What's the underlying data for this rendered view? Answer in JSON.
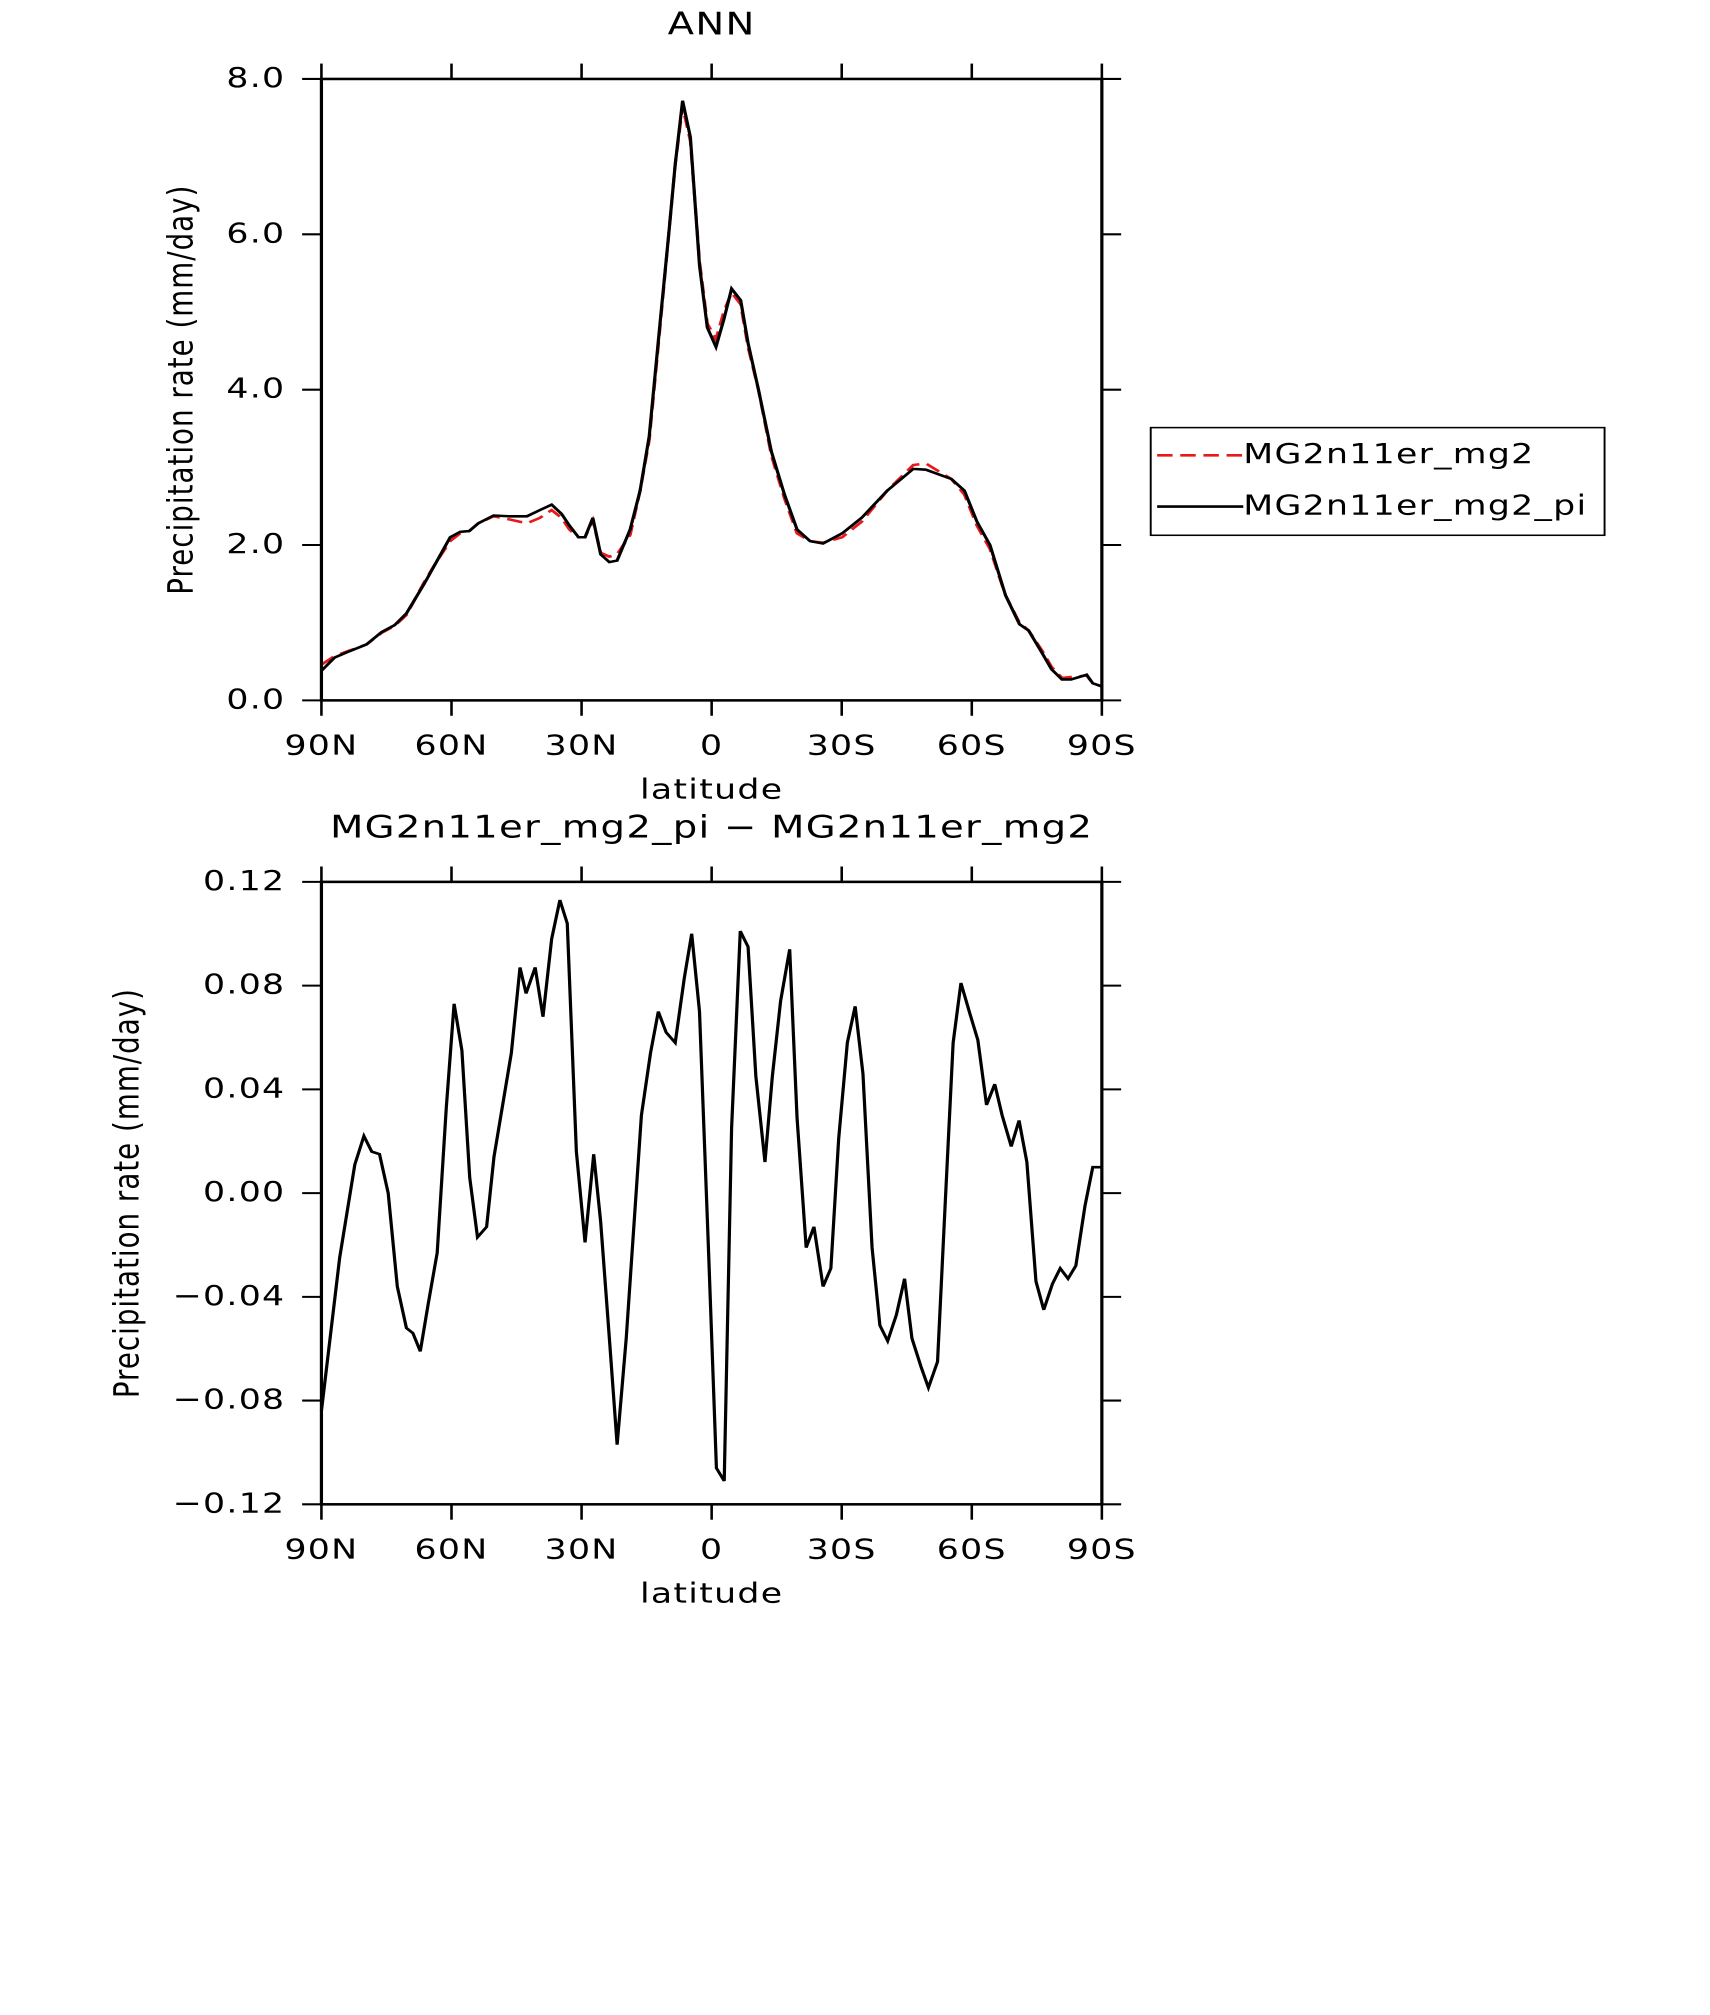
{
  "chart_data": [
    {
      "type": "line",
      "title": "ANN",
      "x_label": "latitude",
      "y_label": "Precipitation rate (mm/day)",
      "x": [
        90,
        87.0,
        84.1,
        79.6,
        76.1,
        73.1,
        70.4,
        66.3,
        63.3,
        60.3,
        58.0,
        55.9,
        53.8,
        50.3,
        46.7,
        42.6,
        39.6,
        36.9,
        34.6,
        32.8,
        30.7,
        29.2,
        27.4,
        25.6,
        23.6,
        21.8,
        18.8,
        16.5,
        14.4,
        12.0,
        9.9,
        8.4,
        6.7,
        4.9,
        2.8,
        1.0,
        -1.0,
        -2.8,
        -4.6,
        -6.7,
        -8.4,
        -10.8,
        -13.8,
        -16.8,
        -19.7,
        -22.7,
        -25.7,
        -30.1,
        -34.6,
        -40.5,
        -46.5,
        -49.4,
        -55.3,
        -58.3,
        -61.2,
        -64.2,
        -67.8,
        -71.0,
        -73.1,
        -76.1,
        -78.4,
        -80.8,
        -82.9,
        -86.5,
        -87.9,
        -90
      ],
      "series": [
        {
          "name": "MG2n11er_mg2",
          "color": "#e8191b",
          "dash": true,
          "values": [
            0.46,
            0.57,
            0.63,
            0.72,
            0.87,
            0.96,
            1.1,
            1.52,
            1.8,
            2.05,
            2.15,
            2.18,
            2.28,
            2.37,
            2.33,
            2.28,
            2.35,
            2.45,
            2.35,
            2.2,
            2.1,
            2.1,
            2.32,
            1.9,
            1.85,
            1.88,
            2.13,
            2.7,
            3.35,
            4.75,
            6.0,
            6.9,
            7.65,
            7.2,
            5.65,
            4.85,
            4.65,
            5.0,
            5.25,
            5.1,
            4.55,
            4.0,
            3.15,
            2.6,
            2.15,
            2.05,
            2.03,
            2.1,
            2.3,
            2.7,
            3.03,
            3.05,
            2.85,
            2.65,
            2.25,
            1.95,
            1.35,
            1.0,
            0.9,
            0.65,
            0.43,
            0.29,
            0.3,
            0.32,
            0.22,
            0.18
          ]
        },
        {
          "name": "MG2n11er_mg2_pi",
          "color": "#000000",
          "dash": false,
          "values": [
            0.38,
            0.55,
            0.62,
            0.72,
            0.88,
            0.97,
            1.12,
            1.5,
            1.8,
            2.1,
            2.17,
            2.18,
            2.28,
            2.38,
            2.37,
            2.37,
            2.45,
            2.52,
            2.4,
            2.25,
            2.1,
            2.1,
            2.35,
            1.88,
            1.78,
            1.8,
            2.2,
            2.7,
            3.4,
            4.8,
            6.0,
            6.9,
            7.72,
            7.25,
            5.6,
            4.8,
            4.55,
            4.9,
            5.3,
            5.15,
            4.6,
            4.0,
            3.2,
            2.65,
            2.2,
            2.05,
            2.02,
            2.15,
            2.35,
            2.7,
            2.98,
            2.97,
            2.85,
            2.7,
            2.3,
            2.0,
            1.35,
            0.98,
            0.9,
            0.62,
            0.4,
            0.27,
            0.27,
            0.33,
            0.22,
            0.18
          ]
        }
      ],
      "xlim": [
        90,
        -90
      ],
      "xticks": [
        {
          "value": 90,
          "label": "90N"
        },
        {
          "value": 60,
          "label": "60N"
        },
        {
          "value": 30,
          "label": "30N"
        },
        0,
        {
          "value": -30,
          "label": "30S"
        },
        {
          "value": -60,
          "label": "60S"
        },
        {
          "value": -90,
          "label": "90S"
        }
      ],
      "ylim": [
        0,
        8
      ],
      "yticks": [
        {
          "value": 0,
          "label": "0.0"
        },
        {
          "value": 2,
          "label": "2.0"
        },
        {
          "value": 4,
          "label": "4.0"
        },
        {
          "value": 6,
          "label": "6.0"
        },
        {
          "value": 8,
          "label": "8.0"
        }
      ],
      "legend": "right"
    },
    {
      "type": "line",
      "title": "MG2n11er_mg2_pi − MG2n11er_mg2",
      "x_label": "latitude",
      "y_label": "Precipitation rate (mm/day)",
      "x": [
        90,
        85.8,
        82.3,
        80.2,
        78.4,
        76.6,
        74.6,
        72.5,
        70.4,
        68.9,
        67.2,
        65.4,
        63.3,
        61.2,
        59.4,
        57.6,
        55.8,
        54.0,
        51.9,
        50.2,
        46.2,
        44.2,
        42.8,
        40.7,
        38.9,
        36.9,
        35.0,
        33.3,
        31.2,
        29.2,
        27.2,
        25.6,
        23.5,
        21.8,
        19.7,
        16.2,
        14.1,
        12.3,
        10.5,
        8.4,
        6.3,
        4.6,
        2.8,
        0.7,
        -1.1,
        -2.9,
        -4.6,
        -6.6,
        -8.4,
        -10.2,
        -12.3,
        -14.0,
        -15.9,
        -18.0,
        -19.7,
        -21.8,
        -23.6,
        -25.7,
        -27.5,
        -29.3,
        -31.3,
        -33.1,
        -34.9,
        -37.0,
        -38.8,
        -40.6,
        -42.6,
        -44.5,
        -46.2,
        -48.3,
        -50.0,
        -52.1,
        -53.9,
        -55.7,
        -57.5,
        -59.6,
        -61.4,
        -63.4,
        -65.3,
        -67.0,
        -69.1,
        -70.9,
        -72.7,
        -74.8,
        -76.6,
        -78.6,
        -80.4,
        -82.2,
        -84.0,
        -86.1,
        -87.9,
        -90
      ],
      "values": [
        -0.084,
        -0.025,
        0.011,
        0.022,
        0.016,
        0.015,
        0.0,
        -0.036,
        -0.052,
        -0.054,
        -0.061,
        -0.043,
        -0.023,
        0.033,
        0.073,
        0.055,
        0.006,
        -0.017,
        -0.013,
        0.014,
        0.054,
        0.087,
        0.077,
        0.087,
        0.068,
        0.098,
        0.113,
        0.104,
        0.016,
        -0.019,
        0.015,
        -0.011,
        -0.058,
        -0.097,
        -0.056,
        0.03,
        0.054,
        0.07,
        0.062,
        0.058,
        0.083,
        0.1,
        0.07,
        -0.023,
        -0.106,
        -0.111,
        0.025,
        0.101,
        0.095,
        0.045,
        0.012,
        0.045,
        0.074,
        0.094,
        0.029,
        -0.021,
        -0.013,
        -0.036,
        -0.029,
        0.021,
        0.058,
        0.072,
        0.046,
        -0.021,
        -0.051,
        -0.057,
        -0.047,
        -0.033,
        -0.056,
        -0.067,
        -0.075,
        -0.065,
        -0.003,
        0.058,
        0.081,
        0.069,
        0.059,
        0.034,
        0.042,
        0.03,
        0.018,
        0.028,
        0.012,
        -0.034,
        -0.045,
        -0.035,
        -0.029,
        -0.033,
        -0.028,
        -0.005,
        0.01,
        0.01
      ],
      "color": "#000000",
      "xlim": [
        90,
        -90
      ],
      "xticks": [
        {
          "value": 90,
          "label": "90N"
        },
        {
          "value": 60,
          "label": "60N"
        },
        {
          "value": 30,
          "label": "30N"
        },
        0,
        {
          "value": -30,
          "label": "30S"
        },
        {
          "value": -60,
          "label": "60S"
        },
        {
          "value": -90,
          "label": "90S"
        }
      ],
      "ylim": [
        -0.12,
        0.12
      ],
      "yticks": [
        {
          "value": -0.12,
          "label": "−0.12"
        },
        {
          "value": -0.08,
          "label": "−0.08"
        },
        {
          "value": -0.04,
          "label": "−0.04"
        },
        {
          "value": 0,
          "label": "0.00"
        },
        0.04,
        0.08,
        0.12
      ]
    }
  ]
}
